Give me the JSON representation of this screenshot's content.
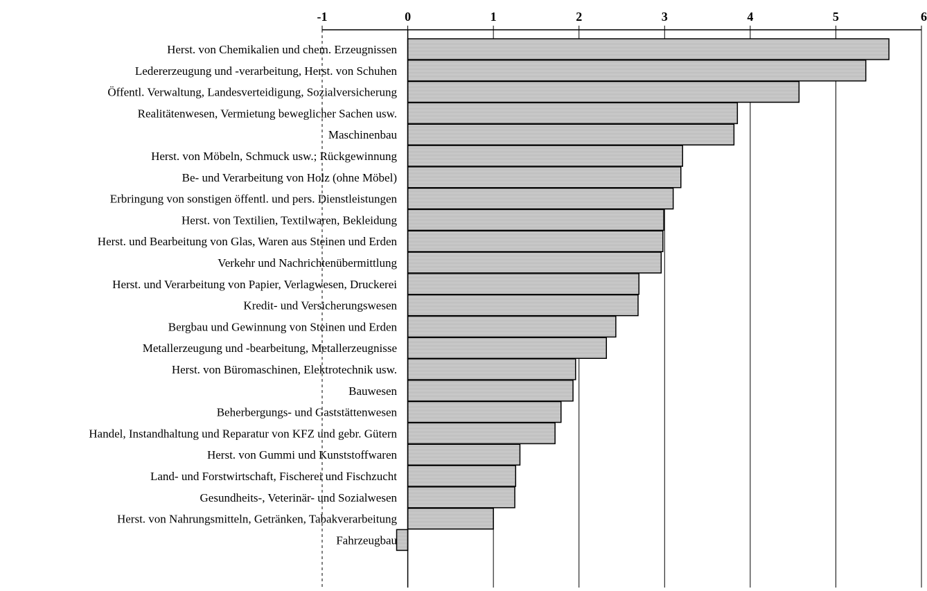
{
  "chart_data": {
    "type": "bar",
    "orientation": "horizontal",
    "xlim": [
      -1,
      6
    ],
    "x_ticks": [
      "-1",
      "0",
      "1",
      "2",
      "3",
      "4",
      "5",
      "6"
    ],
    "x_axis_position": "top",
    "grid": "vertical",
    "bar_fill": "#cccccc",
    "bar_stroke": "#000000",
    "categories": [
      "Herst. von Chemikalien und chem. Erzeugnissen",
      "Ledererzeugung und -verarbeitung, Herst. von Schuhen",
      "Öffentl. Verwaltung, Landesverteidigung, Sozialversicherung",
      "Realitätenwesen, Vermietung beweglicher Sachen usw.",
      "Maschinenbau",
      "Herst. von Möbeln, Schmuck usw.; Rückgewinnung",
      "Be- und Verarbeitung von Holz (ohne Möbel)",
      "Erbringung von sonstigen öffentl. und pers. Dienstleistungen",
      "Herst. von Textilien, Textilwaren, Bekleidung",
      "Herst. und Bearbeitung von Glas, Waren aus Steinen und Erden",
      "Verkehr und Nachrichtenübermittlung",
      "Herst. und Verarbeitung von Papier, Verlagwesen, Druckerei",
      "Kredit- und Versicherungswesen",
      "Bergbau und Gewinnung von Steinen und Erden",
      "Metallerzeugung und -bearbeitung, Metallerzeugnisse",
      "Herst. von Büromaschinen, Elektrotechnik usw.",
      "Bauwesen",
      "Beherbergungs- und Gaststättenwesen",
      "Handel, Instandhaltung und Reparatur von KFZ und gebr. Gütern",
      "Herst. von Gummi und Kunststoffwaren",
      "Land- und Forstwirtschaft, Fischerei und Fischzucht",
      "Gesundheits-, Veterinär- und Sozialwesen",
      "Herst. von Nahrungsmitteln, Getränken, Tabakverarbeitung",
      "Fahrzeugbau"
    ],
    "values": [
      5.62,
      5.35,
      4.57,
      3.85,
      3.81,
      3.21,
      3.19,
      3.1,
      2.99,
      2.98,
      2.96,
      2.7,
      2.69,
      2.43,
      2.32,
      1.96,
      1.93,
      1.79,
      1.72,
      1.31,
      1.26,
      1.25,
      1.0,
      -0.13
    ]
  }
}
